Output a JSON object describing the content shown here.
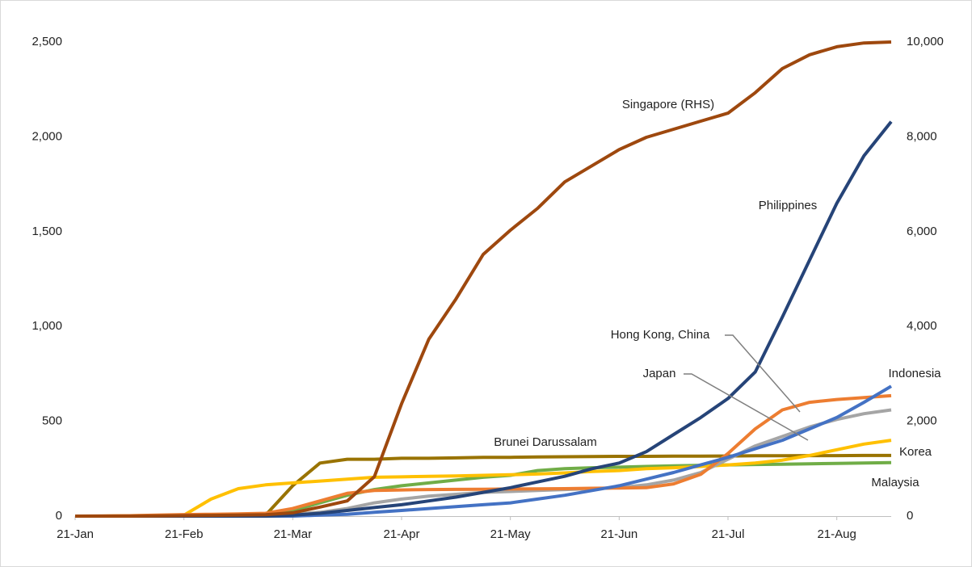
{
  "chart_data": {
    "type": "line",
    "categories": [
      "21-Jan",
      null,
      null,
      null,
      "21-Feb",
      null,
      null,
      null,
      "21-Mar",
      null,
      null,
      null,
      "21-Apr",
      null,
      null,
      null,
      "21-May",
      null,
      null,
      null,
      "21-Jun",
      null,
      null,
      null,
      "21-Jul",
      null,
      null,
      null,
      "21-Aug",
      null,
      null
    ],
    "ylim": [
      0,
      2500
    ],
    "yticks": [
      0,
      500,
      {
        "value": 1000,
        "label": "1,000"
      },
      {
        "value": 1500,
        "label": "1,500"
      },
      {
        "value": 2000,
        "label": "2,000"
      },
      {
        "value": 2500,
        "label": "2,500"
      }
    ],
    "y2lim": [
      0,
      10000
    ],
    "y2ticks": [
      0,
      {
        "value": 2000,
        "label": "2,000"
      },
      {
        "value": 4000,
        "label": "4,000"
      },
      {
        "value": 6000,
        "label": "6,000"
      },
      {
        "value": 8000,
        "label": "8,000"
      },
      {
        "value": 10000,
        "label": "10,000"
      }
    ],
    "grid": false,
    "series": [
      {
        "name": "Singapore (RHS)",
        "color": "#9e480e",
        "axis": "y2",
        "values": [
          0,
          0,
          0,
          5,
          10,
          15,
          20,
          30,
          70,
          190,
          320,
          830,
          2370,
          3730,
          4580,
          5520,
          6030,
          6490,
          7050,
          7390,
          7730,
          7990,
          8160,
          8330,
          8500,
          8930,
          9440,
          9730,
          9900,
          9980,
          10000
        ]
      },
      {
        "name": "Philippines",
        "color": "#264478",
        "values": [
          0,
          0,
          0,
          0,
          0,
          0,
          0,
          0,
          5,
          15,
          30,
          45,
          60,
          80,
          100,
          125,
          150,
          180,
          210,
          250,
          280,
          340,
          430,
          520,
          620,
          760,
          1050,
          1350,
          1650,
          1900,
          2080
        ]
      },
      {
        "name": "Indonesia",
        "color": "#4472c4",
        "values": [
          0,
          0,
          0,
          0,
          0,
          0,
          0,
          0,
          0,
          5,
          10,
          20,
          30,
          40,
          50,
          60,
          70,
          90,
          110,
          135,
          160,
          195,
          230,
          270,
          310,
          355,
          400,
          460,
          520,
          600,
          685
        ]
      },
      {
        "name": "Hong Kong, China",
        "color": "#ed7d31",
        "values": [
          0,
          1,
          2,
          5,
          8,
          10,
          12,
          15,
          40,
          80,
          120,
          135,
          138,
          140,
          141,
          142,
          143,
          144,
          145,
          147,
          148,
          150,
          170,
          220,
          330,
          460,
          560,
          600,
          615,
          625,
          635
        ]
      },
      {
        "name": "Japan",
        "color": "#a5a5a5",
        "values": [
          0,
          0,
          0,
          1,
          2,
          3,
          4,
          6,
          10,
          20,
          40,
          70,
          90,
          105,
          115,
          125,
          130,
          135,
          140,
          145,
          150,
          165,
          190,
          230,
          300,
          370,
          420,
          470,
          510,
          540,
          560
        ]
      },
      {
        "name": "Korea",
        "color": "#ffc000",
        "values": [
          0,
          0,
          2,
          3,
          5,
          90,
          145,
          165,
          175,
          185,
          195,
          205,
          207,
          210,
          212,
          215,
          218,
          222,
          228,
          235,
          240,
          250,
          255,
          262,
          270,
          280,
          295,
          320,
          350,
          380,
          400
        ]
      },
      {
        "name": "Brunei Darussalam",
        "color": "#997300",
        "values": [
          0,
          0,
          0,
          0,
          0,
          0,
          0,
          5,
          160,
          280,
          300,
          300,
          305,
          305,
          307,
          310,
          310,
          312,
          313,
          314,
          315,
          315,
          316,
          316,
          317,
          318,
          318,
          319,
          319,
          320,
          320
        ]
      },
      {
        "name": "Malaysia",
        "color": "#70ad47",
        "values": [
          0,
          0,
          0,
          0,
          1,
          2,
          5,
          10,
          30,
          70,
          110,
          140,
          160,
          175,
          190,
          205,
          215,
          240,
          250,
          255,
          258,
          262,
          265,
          268,
          270,
          272,
          274,
          276,
          278,
          280,
          282
        ]
      }
    ]
  }
}
